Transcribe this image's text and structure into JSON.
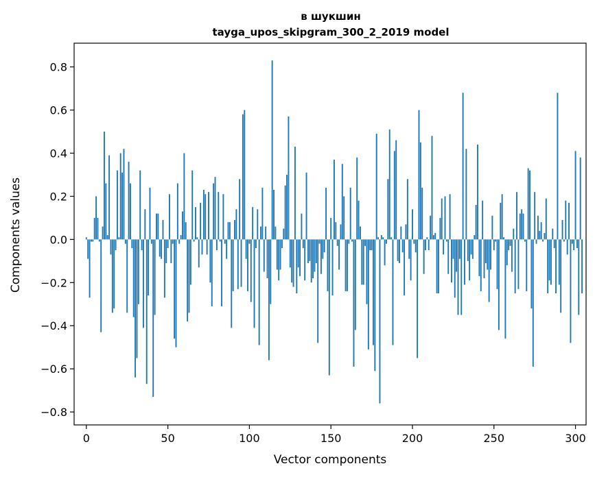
{
  "chart_data": {
    "type": "bar",
    "title_line1": "в шукшин",
    "title_line2": "tayga_upos_skipgram_300_2_2019 model",
    "xlabel": "Vector components",
    "ylabel": "Components values",
    "xlim": [
      -7.5,
      306.5
    ],
    "ylim": [
      -0.86,
      0.91
    ],
    "xticks": [
      0,
      50,
      100,
      150,
      200,
      250,
      300
    ],
    "xtick_labels": [
      "0",
      "50",
      "100",
      "150",
      "200",
      "250",
      "300"
    ],
    "yticks": [
      0.8,
      0.6,
      0.4,
      0.2,
      0.0,
      -0.2,
      -0.4,
      -0.6,
      -0.8
    ],
    "ytick_labels": [
      "0.8",
      "0.6",
      "0.4",
      "0.2",
      "0.0",
      "−0.2",
      "−0.4",
      "−0.6",
      "−0.8"
    ],
    "bar_color": "#1f77b4",
    "grid": false,
    "values": [
      0.01,
      -0.09,
      -0.27,
      -0.01,
      -0.01,
      0.1,
      0.2,
      0.1,
      -0.01,
      -0.43,
      0.06,
      0.5,
      0.26,
      0.02,
      0.39,
      -0.07,
      -0.34,
      -0.32,
      -0.05,
      0.32,
      0.01,
      0.4,
      0.31,
      0.42,
      -0.02,
      -0.34,
      0.36,
      0.26,
      -0.04,
      -0.36,
      -0.64,
      -0.55,
      -0.3,
      0.32,
      -0.05,
      -0.41,
      0.14,
      -0.67,
      -0.26,
      0.24,
      -0.02,
      -0.73,
      -0.35,
      0.12,
      0.12,
      -0.08,
      -0.09,
      0.09,
      -0.27,
      -0.11,
      -0.04,
      0.21,
      -0.11,
      -0.02,
      -0.46,
      -0.5,
      0.26,
      -0.02,
      0.02,
      0.13,
      0.4,
      0.08,
      -0.38,
      -0.34,
      -0.21,
      0.32,
      -0.01,
      0.15,
      0.01,
      -0.13,
      0.17,
      -0.07,
      0.23,
      0.21,
      -0.07,
      0.22,
      -0.2,
      -0.31,
      0.26,
      0.29,
      -0.05,
      0.22,
      -0.01,
      -0.31,
      0.21,
      -0.02,
      -0.09,
      0.08,
      0.08,
      -0.41,
      -0.24,
      0.09,
      0.14,
      -0.23,
      0.28,
      -0.22,
      0.58,
      0.6,
      -0.09,
      -0.24,
      -0.02,
      -0.29,
      0.15,
      -0.41,
      -0.04,
      0.14,
      -0.49,
      0.06,
      0.24,
      -0.15,
      0.06,
      -0.18,
      -0.56,
      -0.3,
      0.83,
      0.23,
      0.06,
      -0.14,
      -0.19,
      -0.14,
      -0.04,
      0.05,
      0.25,
      0.3,
      0.57,
      -0.13,
      -0.2,
      -0.22,
      0.43,
      -0.25,
      -0.13,
      -0.17,
      0.12,
      -0.04,
      -0.19,
      0.31,
      -0.11,
      -0.1,
      -0.2,
      -0.18,
      -0.15,
      -0.11,
      -0.48,
      -0.02,
      -0.16,
      -0.09,
      -0.06,
      0.24,
      -0.24,
      -0.63,
      0.1,
      -0.26,
      0.37,
      0.08,
      -0.03,
      -0.14,
      0.07,
      0.35,
      0.2,
      -0.24,
      -0.24,
      -0.02,
      0.24,
      -0.01,
      -0.59,
      -0.42,
      0.38,
      0.18,
      0.06,
      -0.21,
      -0.21,
      -0.03,
      -0.3,
      -0.51,
      -0.05,
      -0.05,
      -0.49,
      -0.61,
      0.49,
      0.01,
      -0.76,
      0.02,
      0.01,
      -0.12,
      -0.02,
      0.28,
      0.51,
      0.01,
      -0.49,
      0.41,
      0.46,
      -0.1,
      -0.11,
      0.06,
      -0.06,
      -0.26,
      0.07,
      0.28,
      -0.09,
      -0.19,
      0.14,
      -0.02,
      -0.06,
      -0.55,
      0.6,
      0.45,
      0.24,
      -0.16,
      -0.05,
      0.01,
      -0.05,
      0.11,
      0.48,
      0.02,
      0.03,
      -0.25,
      -0.25,
      0.1,
      0.19,
      -0.07,
      0.2,
      -0.01,
      -0.16,
      0.21,
      -0.2,
      -0.09,
      -0.27,
      -0.15,
      -0.35,
      -0.09,
      -0.35,
      0.68,
      -0.21,
      0.42,
      -0.1,
      -0.19,
      -0.07,
      -0.09,
      0.02,
      0.16,
      0.44,
      -0.17,
      -0.24,
      0.18,
      -0.18,
      -0.11,
      -0.14,
      -0.29,
      -0.14,
      0.11,
      -0.05,
      -0.01,
      -0.23,
      -0.42,
      0.17,
      0.21,
      0.01,
      -0.46,
      -0.12,
      -0.05,
      -0.03,
      -0.15,
      0.05,
      -0.25,
      0.22,
      -0.23,
      0.12,
      0.14,
      0.12,
      -0.01,
      -0.24,
      0.33,
      0.32,
      -0.32,
      -0.59,
      0.22,
      -0.02,
      0.11,
      0.04,
      0.08,
      -0.01,
      0.03,
      0.19,
      -0.25,
      -0.19,
      -0.21,
      0.05,
      -0.04,
      -0.25,
      0.68,
      -0.21,
      -0.34,
      0.09,
      -0.01,
      0.18,
      -0.07,
      0.17,
      -0.48,
      -0.02,
      -0.05,
      0.41,
      -0.04,
      -0.35,
      0.38,
      -0.25
    ]
  }
}
